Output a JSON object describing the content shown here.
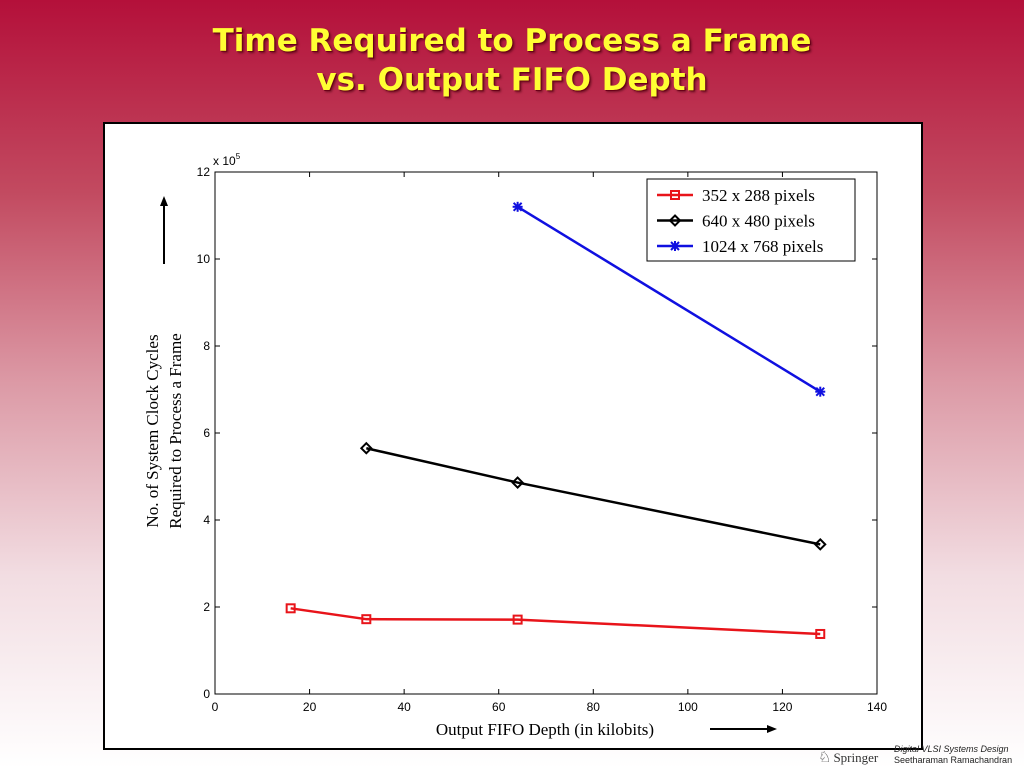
{
  "slide": {
    "title_line1": "Time Required to Process a Frame",
    "title_line2": "vs. Output FIFO Depth"
  },
  "footer": {
    "publisher": "Springer",
    "book_title": "Digital VLSI Systems Design",
    "author": "Seetharaman Ramachandran"
  },
  "chart_data": {
    "type": "line",
    "xlabel": "Output FIFO Depth (in kilobits)",
    "ylabel_line1": "No. of System Clock Cycles",
    "ylabel_line2": "Required to Process a Frame",
    "y_multiplier_base": "x 10",
    "y_multiplier_exp": "5",
    "xlim": [
      0,
      140
    ],
    "ylim": [
      0,
      12
    ],
    "xticks": [
      0,
      20,
      40,
      60,
      80,
      100,
      120,
      140
    ],
    "yticks": [
      0,
      2,
      4,
      6,
      8,
      10,
      12
    ],
    "grid": false,
    "legend_position": "top-right",
    "series": [
      {
        "name": "352 x 288 pixels",
        "color": "#e8141a",
        "marker": "square",
        "x": [
          16,
          32,
          64,
          128
        ],
        "y": [
          1.97,
          1.72,
          1.71,
          1.38
        ]
      },
      {
        "name": "640 x 480 pixels",
        "color": "#000000",
        "marker": "diamond",
        "x": [
          32,
          64,
          128
        ],
        "y": [
          5.65,
          4.86,
          3.44
        ]
      },
      {
        "name": "1024 x 768 pixels",
        "color": "#1010e0",
        "marker": "star",
        "x": [
          64,
          128
        ],
        "y": [
          11.2,
          6.95
        ]
      }
    ]
  }
}
